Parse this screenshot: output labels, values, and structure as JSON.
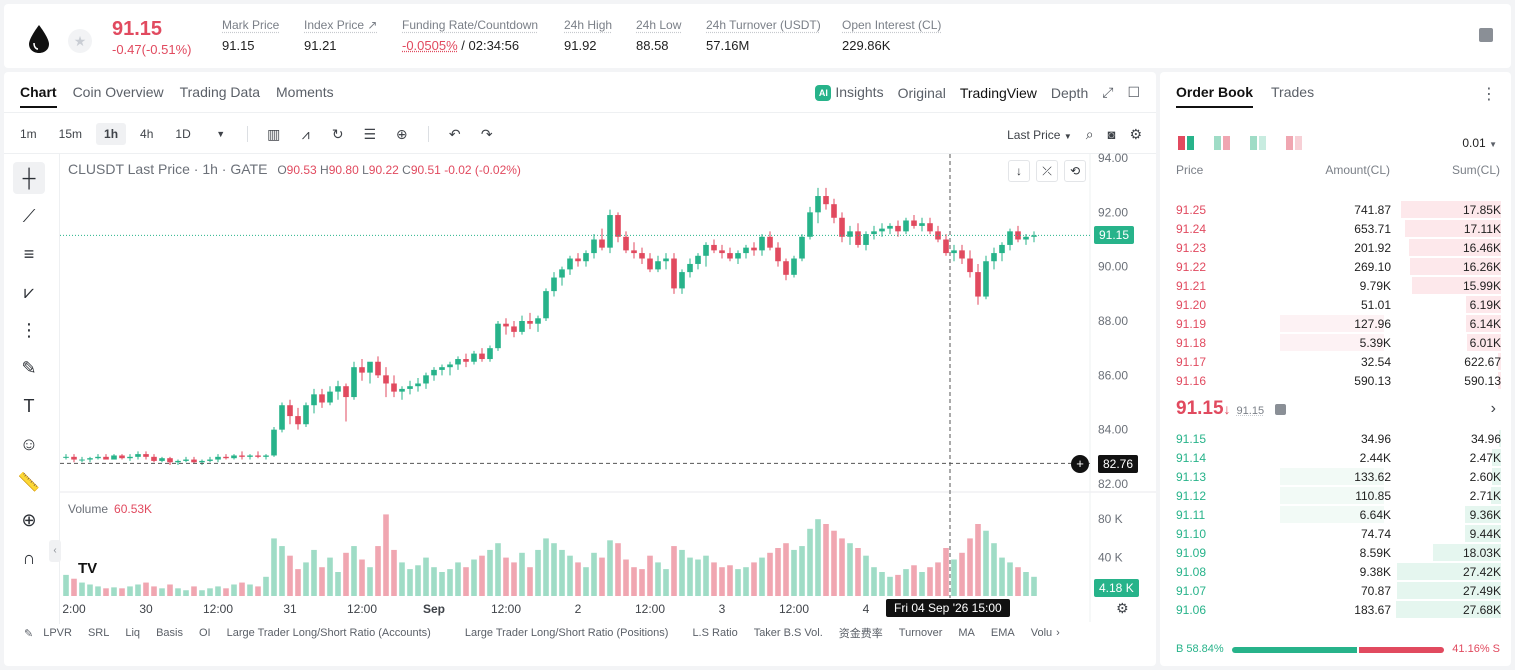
{
  "header": {
    "last_price": "91.15",
    "change": "-0.47(-0.51%)",
    "stats": [
      {
        "label": "Mark Price",
        "value": "91.15"
      },
      {
        "label": "Index Price ↗",
        "value": "91.21"
      },
      {
        "label": "Funding Rate/Countdown",
        "value_neg": "-0.0505%",
        "value": "/ 02:34:56"
      },
      {
        "label": "24h High",
        "value": "91.92"
      },
      {
        "label": "24h Low",
        "value": "88.58"
      },
      {
        "label": "24h Turnover (USDT)",
        "value": "57.16M"
      },
      {
        "label": "Open Interest (CL)",
        "value": "229.86K"
      }
    ]
  },
  "chart_panel": {
    "tabs": [
      "Chart",
      "Coin Overview",
      "Trading Data",
      "Moments"
    ],
    "views": {
      "ai": "AI",
      "insights": "Insights",
      "original": "Original",
      "tradingview": "TradingView",
      "depth": "Depth"
    },
    "timeframes": [
      "1m",
      "15m",
      "1h",
      "4h",
      "1D"
    ],
    "price_type": "Last Price",
    "legend": {
      "symbol": "CLUSDT Last Price · 1h · GATE",
      "o_label": "O",
      "o": "90.53",
      "h_label": "H",
      "h": "90.80",
      "l_label": "L",
      "l": "90.22",
      "c_label": "C",
      "c": "90.51",
      "chg": "-0.02 (-0.02%)"
    },
    "volume_legend": {
      "label": "Volume",
      "value": "60.53K"
    },
    "current_price_tag": "91.15",
    "crosshair_price_tag": "82.76",
    "volume_tag": "4.18 K",
    "crosshair_time": "Fri 04 Sep '26   15:00",
    "tv_logo": "TV",
    "indicators": [
      "LPVR",
      "SRL",
      "Liq",
      "Basis",
      "OI",
      "Large Trader Long/Short Ratio (Accounts)",
      "Large Trader Long/Short Ratio (Positions)",
      "L.S Ratio",
      "Taker B.S Vol.",
      "资金费率",
      "Turnover",
      "MA",
      "EMA",
      "Volu"
    ]
  },
  "chart_data": {
    "type": "candlestick",
    "price_axis": [
      "94.00",
      "92.00",
      "90.00",
      "88.00",
      "86.00",
      "84.00",
      "82.00"
    ],
    "volume_axis": [
      "80 K",
      "40 K"
    ],
    "time_axis": [
      "2:00",
      "30",
      "12:00",
      "31",
      "12:00",
      "Sep",
      "12:00",
      "2",
      "12:00",
      "3",
      "12:00",
      "4",
      "12:00"
    ],
    "ylim": [
      82,
      94
    ],
    "volume_ylim": [
      0,
      100
    ],
    "candles": [
      [
        83.0,
        83.1,
        82.9,
        83.0,
        22
      ],
      [
        83.0,
        83.1,
        82.8,
        82.9,
        18
      ],
      [
        82.9,
        83.0,
        82.8,
        82.9,
        14
      ],
      [
        82.9,
        83.0,
        82.8,
        82.95,
        12
      ],
      [
        82.95,
        83.1,
        82.9,
        83.0,
        10
      ],
      [
        83.0,
        83.1,
        82.9,
        82.9,
        8
      ],
      [
        82.9,
        83.1,
        82.9,
        83.05,
        9
      ],
      [
        83.05,
        83.1,
        82.9,
        82.95,
        8
      ],
      [
        82.95,
        83.1,
        82.85,
        83.0,
        10
      ],
      [
        83.0,
        83.2,
        82.9,
        83.1,
        12
      ],
      [
        83.1,
        83.2,
        82.9,
        83.0,
        14
      ],
      [
        83.0,
        83.1,
        82.8,
        82.85,
        10
      ],
      [
        82.85,
        83.0,
        82.8,
        82.95,
        8
      ],
      [
        82.95,
        83.0,
        82.7,
        82.8,
        12
      ],
      [
        82.8,
        82.9,
        82.7,
        82.85,
        8
      ],
      [
        82.85,
        83.0,
        82.8,
        82.9,
        6
      ],
      [
        82.9,
        83.0,
        82.75,
        82.8,
        10
      ],
      [
        82.8,
        82.9,
        82.7,
        82.85,
        6
      ],
      [
        82.85,
        83.0,
        82.8,
        82.9,
        8
      ],
      [
        82.9,
        83.1,
        82.8,
        83.0,
        10
      ],
      [
        83.0,
        83.1,
        82.9,
        82.95,
        8
      ],
      [
        82.95,
        83.1,
        82.9,
        83.05,
        12
      ],
      [
        83.05,
        83.2,
        82.9,
        83.0,
        14
      ],
      [
        83.0,
        83.1,
        82.9,
        83.05,
        12
      ],
      [
        83.05,
        83.2,
        82.95,
        83.0,
        10
      ],
      [
        83.0,
        83.1,
        82.9,
        83.05,
        20
      ],
      [
        83.05,
        84.1,
        83.0,
        84.0,
        60
      ],
      [
        84.0,
        85.0,
        83.9,
        84.9,
        52
      ],
      [
        84.9,
        85.1,
        84.2,
        84.5,
        42
      ],
      [
        84.5,
        84.8,
        84.0,
        84.2,
        28
      ],
      [
        84.2,
        85.0,
        84.1,
        84.9,
        35
      ],
      [
        84.9,
        85.5,
        84.6,
        85.3,
        48
      ],
      [
        85.3,
        85.5,
        84.8,
        85.0,
        30
      ],
      [
        85.0,
        85.6,
        84.9,
        85.4,
        40
      ],
      [
        85.4,
        85.8,
        85.1,
        85.6,
        25
      ],
      [
        85.6,
        85.7,
        84.3,
        85.2,
        45
      ],
      [
        85.2,
        86.5,
        85.1,
        86.3,
        52
      ],
      [
        86.3,
        86.6,
        85.8,
        86.1,
        38
      ],
      [
        86.1,
        86.4,
        85.7,
        86.5,
        30
      ],
      [
        86.5,
        86.7,
        85.9,
        86.0,
        52
      ],
      [
        86.0,
        86.3,
        85.2,
        85.7,
        85
      ],
      [
        85.7,
        86.0,
        85.2,
        85.4,
        48
      ],
      [
        85.4,
        85.6,
        85.1,
        85.5,
        35
      ],
      [
        85.5,
        85.8,
        85.3,
        85.6,
        28
      ],
      [
        85.6,
        85.9,
        85.4,
        85.7,
        32
      ],
      [
        85.7,
        86.1,
        85.5,
        86.0,
        40
      ],
      [
        86.0,
        86.3,
        85.8,
        86.2,
        30
      ],
      [
        86.2,
        86.4,
        86.0,
        86.3,
        25
      ],
      [
        86.3,
        86.5,
        86.0,
        86.4,
        28
      ],
      [
        86.4,
        86.7,
        86.2,
        86.6,
        35
      ],
      [
        86.6,
        86.8,
        86.3,
        86.5,
        30
      ],
      [
        86.5,
        86.9,
        86.4,
        86.8,
        38
      ],
      [
        86.8,
        87.0,
        86.5,
        86.6,
        42
      ],
      [
        86.6,
        87.1,
        86.5,
        87.0,
        48
      ],
      [
        87.0,
        88.0,
        86.9,
        87.9,
        55
      ],
      [
        87.9,
        88.1,
        87.5,
        87.8,
        40
      ],
      [
        87.8,
        88.0,
        87.4,
        87.6,
        35
      ],
      [
        87.6,
        88.2,
        87.5,
        88.0,
        45
      ],
      [
        88.0,
        88.3,
        87.7,
        87.9,
        30
      ],
      [
        87.9,
        88.2,
        87.6,
        88.1,
        48
      ],
      [
        88.1,
        89.2,
        88.0,
        89.1,
        60
      ],
      [
        89.1,
        89.8,
        88.9,
        89.6,
        55
      ],
      [
        89.6,
        90.0,
        89.3,
        89.9,
        48
      ],
      [
        89.9,
        90.4,
        89.7,
        90.3,
        42
      ],
      [
        90.3,
        90.5,
        90.0,
        90.2,
        35
      ],
      [
        90.2,
        90.6,
        90.0,
        90.5,
        30
      ],
      [
        90.5,
        91.2,
        90.3,
        91.0,
        45
      ],
      [
        91.0,
        91.4,
        90.6,
        90.7,
        40
      ],
      [
        90.7,
        92.1,
        90.5,
        91.9,
        58
      ],
      [
        91.9,
        92.0,
        90.9,
        91.1,
        55
      ],
      [
        91.1,
        91.3,
        90.5,
        90.6,
        38
      ],
      [
        90.6,
        90.9,
        90.3,
        90.5,
        30
      ],
      [
        90.5,
        90.7,
        90.1,
        90.3,
        28
      ],
      [
        90.3,
        90.5,
        89.8,
        89.9,
        42
      ],
      [
        89.9,
        90.4,
        89.8,
        90.2,
        35
      ],
      [
        90.2,
        90.5,
        89.9,
        90.3,
        28
      ],
      [
        90.3,
        90.5,
        89.0,
        89.2,
        52
      ],
      [
        89.2,
        89.9,
        89.0,
        89.8,
        48
      ],
      [
        89.8,
        90.3,
        89.6,
        90.1,
        40
      ],
      [
        90.1,
        90.5,
        89.9,
        90.4,
        38
      ],
      [
        90.4,
        90.9,
        90.0,
        90.8,
        42
      ],
      [
        90.8,
        91.0,
        90.5,
        90.6,
        35
      ],
      [
        90.6,
        90.8,
        90.3,
        90.5,
        30
      ],
      [
        90.5,
        90.7,
        90.2,
        90.3,
        32
      ],
      [
        90.3,
        90.6,
        90.1,
        90.5,
        28
      ],
      [
        90.5,
        90.8,
        90.3,
        90.7,
        30
      ],
      [
        90.7,
        90.9,
        90.4,
        90.6,
        35
      ],
      [
        90.6,
        91.2,
        90.4,
        91.1,
        40
      ],
      [
        91.1,
        91.3,
        90.6,
        90.7,
        45
      ],
      [
        90.7,
        90.9,
        90.0,
        90.2,
        50
      ],
      [
        90.2,
        90.3,
        89.5,
        89.7,
        55
      ],
      [
        89.7,
        90.4,
        89.6,
        90.3,
        48
      ],
      [
        90.3,
        91.2,
        90.2,
        91.1,
        52
      ],
      [
        91.1,
        92.2,
        91.0,
        92.0,
        70
      ],
      [
        92.0,
        92.9,
        91.6,
        92.6,
        80
      ],
      [
        92.6,
        92.9,
        92.1,
        92.3,
        75
      ],
      [
        92.3,
        92.5,
        91.6,
        91.8,
        68
      ],
      [
        91.8,
        92.0,
        90.9,
        91.1,
        60
      ],
      [
        91.1,
        91.5,
        90.8,
        91.3,
        55
      ],
      [
        91.3,
        91.6,
        90.7,
        90.8,
        50
      ],
      [
        90.8,
        91.3,
        90.6,
        91.2,
        42
      ],
      [
        91.2,
        91.5,
        91.0,
        91.3,
        30
      ],
      [
        91.3,
        91.6,
        91.1,
        91.4,
        25
      ],
      [
        91.4,
        91.6,
        91.2,
        91.5,
        20
      ],
      [
        91.5,
        91.7,
        91.1,
        91.3,
        22
      ],
      [
        91.3,
        91.8,
        91.2,
        91.7,
        28
      ],
      [
        91.7,
        91.9,
        91.4,
        91.5,
        32
      ],
      [
        91.5,
        91.8,
        91.3,
        91.6,
        25
      ],
      [
        91.6,
        91.8,
        91.2,
        91.3,
        30
      ],
      [
        91.3,
        91.5,
        90.9,
        91.0,
        35
      ],
      [
        91.0,
        91.2,
        90.4,
        90.5,
        50
      ],
      [
        90.5,
        90.8,
        90.2,
        90.6,
        38
      ],
      [
        90.6,
        90.8,
        90.1,
        90.3,
        45
      ],
      [
        90.3,
        90.6,
        89.6,
        89.8,
        60
      ],
      [
        89.8,
        90.1,
        88.6,
        88.9,
        75
      ],
      [
        88.9,
        90.4,
        88.8,
        90.2,
        68
      ],
      [
        90.2,
        90.7,
        89.9,
        90.5,
        55
      ],
      [
        90.5,
        90.9,
        90.2,
        90.8,
        40
      ],
      [
        90.8,
        91.4,
        90.6,
        91.3,
        35
      ],
      [
        91.3,
        91.5,
        90.9,
        91.0,
        30
      ],
      [
        91.0,
        91.2,
        90.8,
        91.1,
        25
      ],
      [
        91.1,
        91.3,
        90.9,
        91.15,
        20
      ]
    ]
  },
  "order_book": {
    "tabs": [
      "Order Book",
      "Trades"
    ],
    "precision": "0.01",
    "headers": {
      "price": "Price",
      "amount": "Amount(CL)",
      "sum": "Sum(CL)"
    },
    "asks": [
      {
        "price": "91.25",
        "amount": "741.87",
        "sum": "17.85K",
        "depth": 0.95,
        "own": 0
      },
      {
        "price": "91.24",
        "amount": "653.71",
        "sum": "17.11K",
        "depth": 0.91,
        "own": 0
      },
      {
        "price": "91.23",
        "amount": "201.92",
        "sum": "16.46K",
        "depth": 0.88,
        "own": 0
      },
      {
        "price": "91.22",
        "amount": "269.10",
        "sum": "16.26K",
        "depth": 0.87,
        "own": 0
      },
      {
        "price": "91.21",
        "amount": "9.79K",
        "sum": "15.99K",
        "depth": 0.85,
        "own": 0
      },
      {
        "price": "91.20",
        "amount": "51.01",
        "sum": "6.19K",
        "depth": 0.33,
        "own": 0
      },
      {
        "price": "91.19",
        "amount": "127.96",
        "sum": "6.14K",
        "depth": 0.33,
        "own": 0.45
      },
      {
        "price": "91.18",
        "amount": "5.39K",
        "sum": "6.01K",
        "depth": 0.32,
        "own": 0.45
      },
      {
        "price": "91.17",
        "amount": "32.54",
        "sum": "622.67",
        "depth": 0.03,
        "own": 0
      },
      {
        "price": "91.16",
        "amount": "590.13",
        "sum": "590.13",
        "depth": 0.03,
        "own": 0
      }
    ],
    "mid": {
      "price": "91.15",
      "arrow": "↓",
      "mark": "91.15"
    },
    "bids": [
      {
        "price": "91.15",
        "amount": "34.96",
        "sum": "34.96",
        "depth": 0.02,
        "own": 0
      },
      {
        "price": "91.14",
        "amount": "2.44K",
        "sum": "2.47K",
        "depth": 0.09,
        "own": 0
      },
      {
        "price": "91.13",
        "amount": "133.62",
        "sum": "2.60K",
        "depth": 0.09,
        "own": 0.45
      },
      {
        "price": "91.12",
        "amount": "110.85",
        "sum": "2.71K",
        "depth": 0.1,
        "own": 0.45
      },
      {
        "price": "91.11",
        "amount": "6.64K",
        "sum": "9.36K",
        "depth": 0.34,
        "own": 0.45
      },
      {
        "price": "91.10",
        "amount": "74.74",
        "sum": "9.44K",
        "depth": 0.34,
        "own": 0
      },
      {
        "price": "91.09",
        "amount": "8.59K",
        "sum": "18.03K",
        "depth": 0.65,
        "own": 0
      },
      {
        "price": "91.08",
        "amount": "9.38K",
        "sum": "27.42K",
        "depth": 0.99,
        "own": 0
      },
      {
        "price": "91.07",
        "amount": "70.87",
        "sum": "27.49K",
        "depth": 0.99,
        "own": 0
      },
      {
        "price": "91.06",
        "amount": "183.67",
        "sum": "27.68K",
        "depth": 1.0,
        "own": 0
      }
    ],
    "ratio": {
      "buy_label": "B 58.84%",
      "sell_label": "41.16% S",
      "buy": 0.5884
    }
  },
  "colors": {
    "up": "#27b38a",
    "down": "#e14a5f",
    "up_vol": "#9fdcc6",
    "down_vol": "#f0a6b1"
  }
}
